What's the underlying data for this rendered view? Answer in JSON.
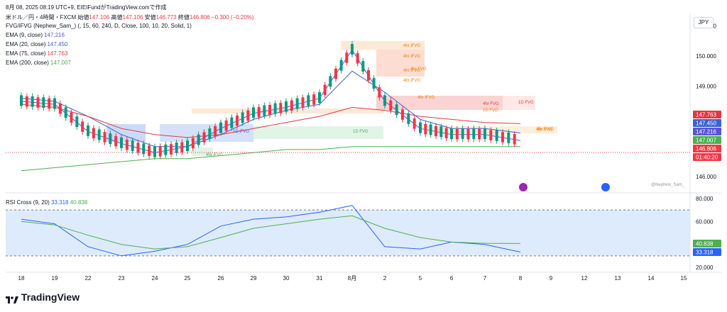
{
  "header": {
    "timestamp_text": "8月 08, 2025 08:19 UTC+9,  EIEIFundがTradingView.comで作成",
    "symbol_line": "米ドル／円・4時間・FXCM",
    "open_label": "始値",
    "open_value": "147.106",
    "high_label": "高値",
    "high_value": "147.106",
    "low_label": "安値",
    "low_value": "146.773",
    "close_label": "終値",
    "close_value": "146.806",
    "change_value": "−0.300 (−0.20%)"
  },
  "legends": [
    {
      "label": "FVG/iFVG (Nephew_Sam_) (, 15, 60, 240, D, Close, 100, 10, 20, Solid, 1)",
      "value": "",
      "color": "#131722"
    },
    {
      "label": "EMA (9, close)",
      "value": "147.216",
      "color": "#5b54d6"
    },
    {
      "label": "EMA (20, close)",
      "value": "147.450",
      "color": "#3a62d6"
    },
    {
      "label": "EMA (75, close)",
      "value": "147.763",
      "color": "#e0393f"
    },
    {
      "label": "EMA (200, close)",
      "value": "147.007",
      "color": "#4caf50"
    }
  ],
  "currency": "JPY",
  "price_axis": {
    "labels": [
      "151.000",
      "150.000",
      "149.000",
      "146.000"
    ]
  },
  "price_tags": [
    {
      "text": "147.763",
      "color": "#e0393f"
    },
    {
      "text": "147.450",
      "color": "#3a62d6"
    },
    {
      "text": "147.216",
      "color": "#5b54d6"
    },
    {
      "text": "147.007",
      "color": "#4caf50"
    },
    {
      "text": "146.806",
      "color": "#f23645"
    },
    {
      "text": "01:40:20",
      "color": "#f23645"
    }
  ],
  "time_axis": [
    "18",
    "19",
    "22",
    "23",
    "24",
    "25",
    "26",
    "29",
    "30",
    "31",
    "8月",
    "2",
    "5",
    "6",
    "7",
    "8",
    "9",
    "12",
    "13",
    "14",
    "15"
  ],
  "fvg_labels": [
    "4hr iFVG",
    "4hr iFVG",
    "4hr FVG",
    "4hr iFVG",
    "4hr iFVG",
    "4hr iFVG",
    "4hr FVG",
    "1D FVG",
    "1D FVG",
    "1D iFVG",
    "4hr iFVG",
    "4hr iFVG",
    "1D FVG",
    "4hr FVG"
  ],
  "rsi": {
    "label": "RSI Cross (9, 20)",
    "value1": "33.318",
    "value2": "40.838",
    "axis_labels": [
      "80.000",
      "60.000",
      "20.000"
    ],
    "tags": [
      "40.838",
      "33.318"
    ]
  },
  "watermark": "@Nephew_Sam_",
  "footer": "TradingView",
  "chart_data": {
    "type": "line",
    "title": "米ドル／円・4時間・FXCM",
    "ylim": [
      145.7,
      151.2
    ],
    "x": [
      "18",
      "19",
      "22",
      "23",
      "24",
      "25",
      "26",
      "29",
      "30",
      "31",
      "8月",
      "2",
      "5",
      "6",
      "7",
      "8"
    ],
    "series": [
      {
        "name": "EMA (9, close)",
        "values": [
          148.5,
          148.4,
          147.5,
          147.1,
          146.8,
          147.0,
          147.6,
          148.1,
          148.3,
          148.6,
          150.2,
          148.5,
          147.6,
          147.4,
          147.4,
          147.2
        ]
      },
      {
        "name": "EMA (20, close)",
        "values": [
          148.6,
          148.5,
          148.0,
          147.4,
          147.0,
          147.0,
          147.4,
          147.9,
          148.2,
          148.4,
          149.5,
          148.8,
          147.9,
          147.6,
          147.6,
          147.45
        ]
      },
      {
        "name": "EMA (75, close)",
        "values": [
          148.4,
          148.3,
          148.0,
          147.6,
          147.4,
          147.3,
          147.4,
          147.6,
          147.8,
          148.0,
          148.3,
          148.2,
          148.0,
          147.9,
          147.8,
          147.76
        ]
      },
      {
        "name": "EMA (200, close)",
        "values": [
          146.2,
          146.3,
          146.4,
          146.5,
          146.6,
          146.6,
          146.7,
          146.8,
          146.9,
          146.9,
          147.0,
          147.0,
          147.0,
          147.0,
          147.0,
          147.0
        ]
      }
    ],
    "rsi_series": [
      {
        "name": "RSI",
        "values": [
          62,
          58,
          38,
          30,
          34,
          40,
          56,
          62,
          64,
          68,
          74,
          38,
          36,
          42,
          40,
          33.3
        ]
      },
      {
        "name": "Signal",
        "values": [
          60,
          57,
          48,
          40,
          36,
          38,
          46,
          54,
          58,
          62,
          65,
          54,
          46,
          42,
          41,
          40.8
        ]
      }
    ],
    "rsi_ylim": [
      20,
      80
    ]
  }
}
